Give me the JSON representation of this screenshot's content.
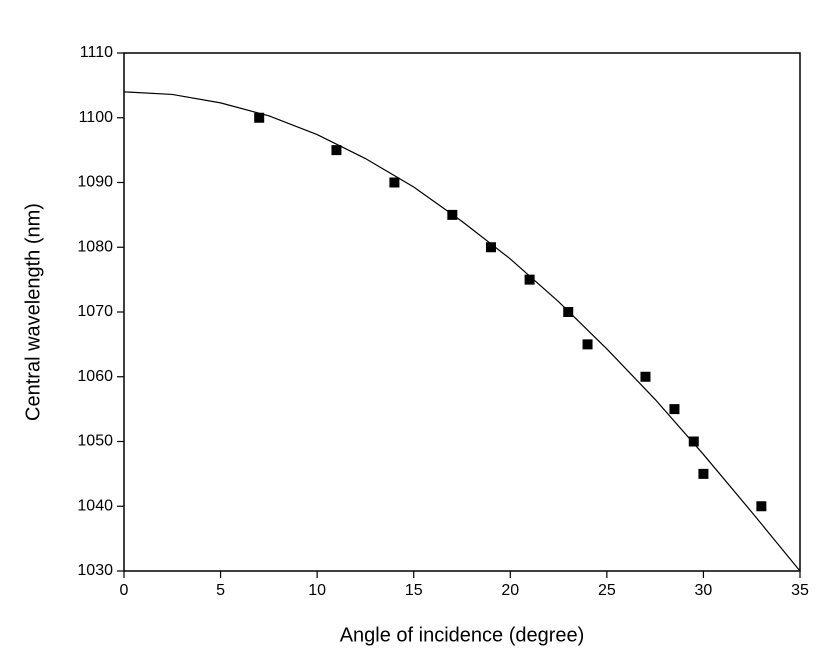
{
  "chart_data": {
    "type": "scatter",
    "x_label": "Angle of incidence (degree)",
    "y_label": "Central wavelength (nm)",
    "xlim": [
      0,
      35
    ],
    "xticks": [
      0,
      5,
      10,
      15,
      20,
      25,
      30,
      35
    ],
    "ylim": [
      1030,
      1110
    ],
    "yticks": [
      1030,
      1040,
      1050,
      1060,
      1070,
      1080,
      1090,
      1100,
      1110
    ],
    "series": [
      {
        "type": "scatter",
        "color": "#000000",
        "x": [
          7,
          11,
          14,
          17,
          19,
          21,
          23,
          24,
          27,
          28.5,
          29.5,
          30,
          33
        ],
        "values": [
          1100,
          1095,
          1090,
          1085,
          1080,
          1075,
          1070,
          1065,
          1060,
          1055,
          1050,
          1045,
          1040
        ]
      },
      {
        "type": "line",
        "color": "#000000",
        "x": [
          0,
          2.5,
          5,
          7.5,
          10,
          12.5,
          15,
          17.5,
          20,
          22.5,
          25,
          27.5,
          30,
          32.5,
          35
        ],
        "values": [
          1104,
          1103.6,
          1102.3,
          1100.3,
          1097.4,
          1093.7,
          1089.3,
          1084.0,
          1078.2,
          1071.6,
          1064.3,
          1056.5,
          1048.0,
          1039.1,
          1030
        ]
      }
    ]
  }
}
